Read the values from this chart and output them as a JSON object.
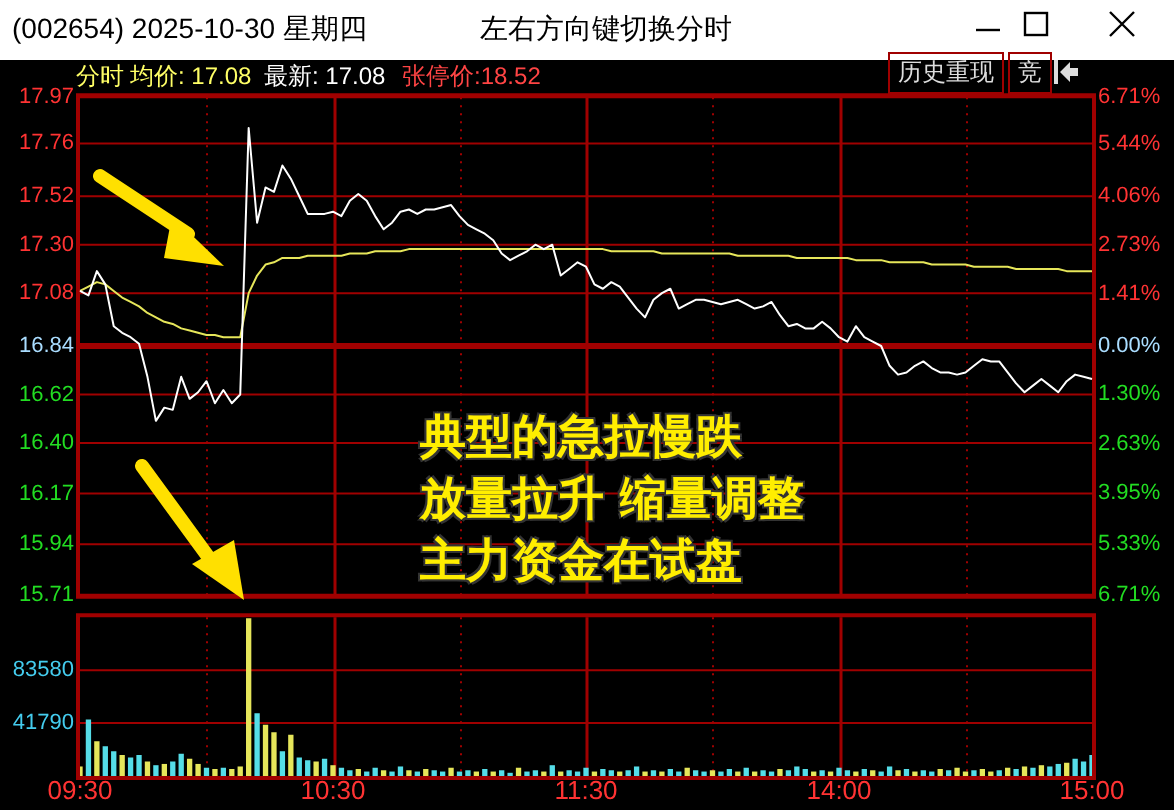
{
  "chart_data": [
    {
      "type": "line",
      "title": "(002654) 2025-10-30 星期四",
      "subtitle": "左右方向键切换分时",
      "annotations": [
        "分时",
        "均价: 17.08",
        "最新: 17.08",
        "张停价:18.52",
        "历史重现",
        "竞",
        "典型的急拉慢跌",
        "放量拉升 缩量调整",
        "主力资金在试盘"
      ],
      "categories": [
        null,
        null,
        null,
        null,
        null,
        null,
        null,
        null,
        null,
        null,
        null,
        null,
        null,
        null,
        null,
        null,
        null,
        null,
        null,
        null,
        null,
        null,
        null,
        null,
        null,
        null,
        null,
        null,
        null,
        null,
        null,
        null,
        null,
        null,
        null,
        null,
        null,
        null,
        null,
        null,
        null,
        null,
        null,
        null,
        null,
        null,
        null,
        null,
        null,
        null,
        null,
        null,
        null,
        null,
        null,
        null,
        null,
        null,
        null,
        null,
        null,
        null,
        null,
        null,
        null,
        null,
        null,
        null,
        null,
        null,
        null,
        null,
        null,
        null,
        null,
        null,
        null,
        null,
        null,
        null,
        null,
        null,
        null,
        null,
        null,
        null,
        null,
        null,
        null,
        null,
        null,
        null,
        null,
        null,
        null,
        null,
        null,
        null,
        null,
        null,
        null,
        null,
        null,
        null,
        null,
        null,
        null,
        null,
        null,
        null,
        null,
        null,
        null,
        null,
        null,
        null,
        null,
        null,
        null,
        null,
        null
      ],
      "ylim": [
        15.71,
        17.97
      ],
      "yticks": [
        15.71,
        15.94,
        16.17,
        {
          "value": 16.4,
          "label": "16.40"
        },
        16.62,
        16.84,
        17.08,
        {
          "value": 17.3,
          "label": "17.30"
        },
        17.52,
        17.76,
        17.97
      ],
      "y2lim": [
        -6.71,
        6.71
      ],
      "y2ticks": [
        {
          "value": -6.71,
          "label": "6.71%"
        },
        {
          "value": -5.33,
          "label": "5.33%"
        },
        {
          "value": -3.95,
          "label": "3.95%"
        },
        {
          "value": -2.63,
          "label": "2.63%"
        },
        {
          "value": -1.3,
          "label": "1.30%"
        },
        {
          "value": 0,
          "label": "0.00%"
        },
        {
          "value": 1.41,
          "label": "1.41%"
        },
        {
          "value": 2.73,
          "label": "2.73%"
        },
        {
          "value": 4.06,
          "label": "4.06%"
        },
        {
          "value": 5.44,
          "label": "5.44%"
        },
        {
          "value": 6.71,
          "label": "6.71%"
        }
      ],
      "tick_labels": "y",
      "grid": true,
      "marker": "none",
      "ref_lines": [
        {
          "axis": "y",
          "value": 16.84,
          "color": "#a00000"
        }
      ],
      "series": [
        {
          "color": "#ffffff",
          "values": [
            17.09,
            17.07,
            17.18,
            17.12,
            16.93,
            16.9,
            16.88,
            16.85,
            16.7,
            16.5,
            16.56,
            16.55,
            16.7,
            16.6,
            16.63,
            16.68,
            16.58,
            16.64,
            16.58,
            16.62,
            17.83,
            17.4,
            17.56,
            17.54,
            17.66,
            17.6,
            17.52,
            17.44,
            17.44,
            17.44,
            17.45,
            17.43,
            17.5,
            17.53,
            17.5,
            17.43,
            17.37,
            17.4,
            17.45,
            17.46,
            17.44,
            17.46,
            17.46,
            17.47,
            17.48,
            17.43,
            17.39,
            17.37,
            17.35,
            17.32,
            17.26,
            17.23,
            17.25,
            17.27,
            17.3,
            17.28,
            17.3,
            17.16,
            17.19,
            17.22,
            17.2,
            17.12,
            17.1,
            17.13,
            17.11,
            17.06,
            17.01,
            16.97,
            17.05,
            17.08,
            17.1,
            17.01,
            17.03,
            17.05,
            17.05,
            17.04,
            17.03,
            17.04,
            17.05,
            17.03,
            17.01,
            17.02,
            17.04,
            16.98,
            16.93,
            16.94,
            16.92,
            16.92,
            16.95,
            16.92,
            16.88,
            16.86,
            16.93,
            16.88,
            16.86,
            16.84,
            16.75,
            16.71,
            16.72,
            16.75,
            16.77,
            16.74,
            16.72,
            16.72,
            16.71,
            16.72,
            16.75,
            16.78,
            16.77,
            16.77,
            16.72,
            16.67,
            16.63,
            16.66,
            16.69,
            16.66,
            16.63,
            16.68,
            16.71,
            16.7,
            16.69
          ]
        },
        {
          "color": "#e6e65a",
          "values": [
            17.09,
            17.11,
            17.13,
            17.12,
            17.09,
            17.06,
            17.04,
            17.02,
            16.99,
            16.97,
            16.95,
            16.94,
            16.92,
            16.91,
            16.9,
            16.89,
            16.89,
            16.88,
            16.88,
            16.88,
            17.08,
            17.16,
            17.21,
            17.22,
            17.24,
            17.24,
            17.24,
            17.25,
            17.25,
            17.25,
            17.25,
            17.25,
            17.26,
            17.26,
            17.26,
            17.27,
            17.27,
            17.27,
            17.27,
            17.28,
            17.28,
            17.28,
            17.28,
            17.28,
            17.28,
            17.28,
            17.28,
            17.28,
            17.28,
            17.28,
            17.28,
            17.28,
            17.28,
            17.28,
            17.28,
            17.28,
            17.28,
            17.28,
            17.28,
            17.28,
            17.28,
            17.28,
            17.28,
            17.27,
            17.27,
            17.27,
            17.27,
            17.27,
            17.27,
            17.26,
            17.26,
            17.26,
            17.26,
            17.26,
            17.26,
            17.26,
            17.26,
            17.26,
            17.25,
            17.25,
            17.25,
            17.25,
            17.25,
            17.25,
            17.25,
            17.24,
            17.24,
            17.24,
            17.24,
            17.24,
            17.24,
            17.24,
            17.23,
            17.23,
            17.23,
            17.23,
            17.22,
            17.22,
            17.22,
            17.22,
            17.22,
            17.21,
            17.21,
            17.21,
            17.21,
            17.21,
            17.2,
            17.2,
            17.2,
            17.2,
            17.2,
            17.19,
            17.19,
            17.19,
            17.19,
            17.19,
            17.19,
            17.18,
            17.18,
            17.18,
            17.18
          ]
        }
      ]
    },
    {
      "type": "bar",
      "categories": [
        "09:30",
        null,
        null,
        null,
        null,
        null,
        null,
        null,
        null,
        null,
        null,
        null,
        null,
        null,
        null,
        null,
        null,
        null,
        null,
        null,
        null,
        null,
        null,
        null,
        null,
        null,
        null,
        null,
        null,
        null,
        "10:30",
        null,
        null,
        null,
        null,
        null,
        null,
        null,
        null,
        null,
        null,
        null,
        null,
        null,
        null,
        null,
        null,
        null,
        null,
        null,
        null,
        null,
        null,
        null,
        null,
        null,
        null,
        null,
        null,
        null,
        "11:30",
        null,
        null,
        null,
        null,
        null,
        null,
        null,
        null,
        null,
        null,
        null,
        null,
        null,
        null,
        null,
        null,
        null,
        null,
        null,
        null,
        null,
        null,
        null,
        null,
        null,
        null,
        null,
        null,
        null,
        "14:00",
        null,
        null,
        null,
        null,
        null,
        null,
        null,
        null,
        null,
        null,
        null,
        null,
        null,
        null,
        null,
        null,
        null,
        null,
        null,
        null,
        null,
        null,
        null,
        null,
        null,
        null,
        null,
        null,
        null,
        "15:00"
      ],
      "ylim": [
        0,
        125370
      ],
      "yticks": [
        41790,
        83580
      ],
      "grid": true,
      "values": [
        7000,
        44000,
        27000,
        23000,
        19000,
        16000,
        14000,
        16000,
        11000,
        8000,
        9000,
        11000,
        17000,
        13000,
        9000,
        6000,
        5000,
        6000,
        5000,
        7000,
        124000,
        49000,
        40000,
        34000,
        19000,
        32000,
        14000,
        12000,
        11000,
        13000,
        8000,
        6000,
        4000,
        5000,
        3000,
        6000,
        4000,
        3000,
        7000,
        4000,
        3000,
        5000,
        4000,
        3000,
        6000,
        3000,
        4000,
        3000,
        5000,
        3000,
        4000,
        2000,
        6000,
        3000,
        4000,
        3000,
        8000,
        3000,
        4000,
        3000,
        6000,
        3000,
        5000,
        4000,
        3000,
        4000,
        7000,
        3000,
        4000,
        3000,
        5000,
        3000,
        6000,
        4000,
        3000,
        4000,
        3000,
        5000,
        3000,
        6000,
        3000,
        4000,
        3000,
        5000,
        4000,
        7000,
        5000,
        3000,
        4000,
        3000,
        6000,
        4000,
        3000,
        5000,
        4000,
        3000,
        7000,
        4000,
        5000,
        3000,
        4000,
        3000,
        5000,
        4000,
        6000,
        3000,
        4000,
        5000,
        3000,
        4000,
        6000,
        5000,
        7000,
        6000,
        8000,
        7000,
        9000,
        10000,
        13000,
        11000,
        16000
      ],
      "colors": [
        "#e6e65a",
        "#55dde8",
        "#e6e65a",
        "#55dde8",
        "#55dde8",
        "#e6e65a",
        "#55dde8",
        "#55dde8",
        "#e6e65a",
        "#55dde8",
        "#e6e65a",
        "#55dde8",
        "#55dde8",
        "#e6e65a",
        "#e6e65a",
        "#55dde8",
        "#e6e65a",
        "#55dde8",
        "#e6e65a",
        "#e6e65a",
        "#e6e65a",
        "#55dde8",
        "#e6e65a",
        "#e6e65a",
        "#55dde8",
        "#e6e65a",
        "#55dde8",
        "#55dde8",
        "#e6e65a",
        "#55dde8",
        "#e6e65a",
        "#55dde8",
        "#55dde8",
        "#e6e65a",
        "#55dde8",
        "#55dde8",
        "#e6e65a",
        "#55dde8",
        "#55dde8",
        "#e6e65a",
        "#55dde8",
        "#e6e65a",
        "#55dde8",
        "#55dde8",
        "#e6e65a",
        "#55dde8",
        "#55dde8",
        "#e6e65a",
        "#55dde8",
        "#e6e65a",
        "#55dde8",
        "#55dde8",
        "#e6e65a",
        "#55dde8",
        "#55dde8",
        "#e6e65a",
        "#55dde8",
        "#e6e65a",
        "#55dde8",
        "#55dde8",
        "#55dde8",
        "#e6e65a",
        "#55dde8",
        "#55dde8",
        "#e6e65a",
        "#55dde8",
        "#55dde8",
        "#e6e65a",
        "#55dde8",
        "#e6e65a",
        "#55dde8",
        "#55dde8",
        "#e6e65a",
        "#55dde8",
        "#55dde8",
        "#e6e65a",
        "#55dde8",
        "#55dde8",
        "#e6e65a",
        "#55dde8",
        "#e6e65a",
        "#55dde8",
        "#55dde8",
        "#e6e65a",
        "#55dde8",
        "#55dde8",
        "#55dde8",
        "#e6e65a",
        "#55dde8",
        "#e6e65a",
        "#55dde8",
        "#55dde8",
        "#e6e65a",
        "#55dde8",
        "#e6e65a",
        "#55dde8",
        "#55dde8",
        "#e6e65a",
        "#55dde8",
        "#e6e65a",
        "#55dde8",
        "#55dde8",
        "#e6e65a",
        "#55dde8",
        "#e6e65a",
        "#e6e65a",
        "#55dde8",
        "#e6e65a",
        "#e6e65a",
        "#55dde8",
        "#e6e65a",
        "#55dde8",
        "#e6e65a",
        "#55dde8",
        "#e6e65a",
        "#55dde8",
        "#55dde8",
        "#e6e65a",
        "#55dde8",
        "#55dde8",
        "#55dde8"
      ]
    }
  ]
}
